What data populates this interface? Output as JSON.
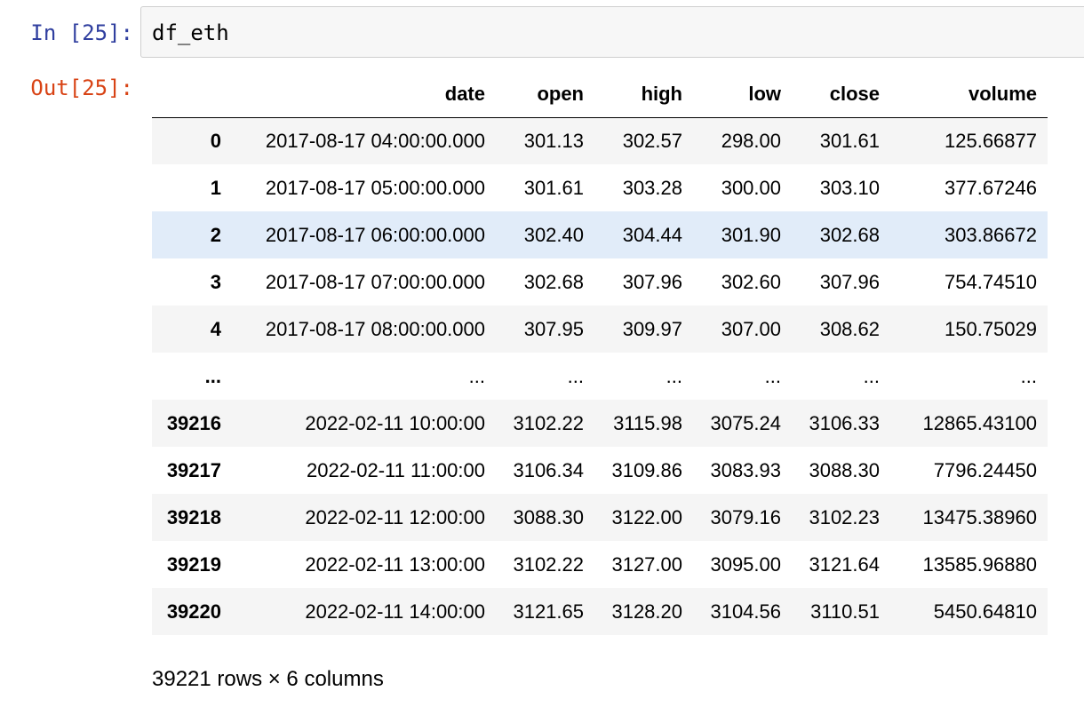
{
  "cell": {
    "in_prompt": "In [25]:",
    "out_prompt": "Out[25]:",
    "code": "df_eth"
  },
  "table": {
    "index_header": "",
    "columns": [
      "date",
      "open",
      "high",
      "low",
      "close",
      "volume"
    ],
    "rows": [
      {
        "index": "0",
        "values": [
          "2017-08-17 04:00:00.000",
          "301.13",
          "302.57",
          "298.00",
          "301.61",
          "125.66877"
        ]
      },
      {
        "index": "1",
        "values": [
          "2017-08-17 05:00:00.000",
          "301.61",
          "303.28",
          "300.00",
          "303.10",
          "377.67246"
        ]
      },
      {
        "index": "2",
        "values": [
          "2017-08-17 06:00:00.000",
          "302.40",
          "304.44",
          "301.90",
          "302.68",
          "303.86672"
        ],
        "highlighted": true
      },
      {
        "index": "3",
        "values": [
          "2017-08-17 07:00:00.000",
          "302.68",
          "307.96",
          "302.60",
          "307.96",
          "754.74510"
        ]
      },
      {
        "index": "4",
        "values": [
          "2017-08-17 08:00:00.000",
          "307.95",
          "309.97",
          "307.00",
          "308.62",
          "150.75029"
        ]
      },
      {
        "index": "...",
        "values": [
          "...",
          "...",
          "...",
          "...",
          "...",
          "..."
        ]
      },
      {
        "index": "39216",
        "values": [
          "2022-02-11 10:00:00",
          "3102.22",
          "3115.98",
          "3075.24",
          "3106.33",
          "12865.43100"
        ]
      },
      {
        "index": "39217",
        "values": [
          "2022-02-11 11:00:00",
          "3106.34",
          "3109.86",
          "3083.93",
          "3088.30",
          "7796.24450"
        ]
      },
      {
        "index": "39218",
        "values": [
          "2022-02-11 12:00:00",
          "3088.30",
          "3122.00",
          "3079.16",
          "3102.23",
          "13475.38960"
        ]
      },
      {
        "index": "39219",
        "values": [
          "2022-02-11 13:00:00",
          "3102.22",
          "3127.00",
          "3095.00",
          "3121.64",
          "13585.96880"
        ]
      },
      {
        "index": "39220",
        "values": [
          "2022-02-11 14:00:00",
          "3121.65",
          "3128.20",
          "3104.56",
          "3110.51",
          "5450.64810"
        ]
      }
    ],
    "shape_text": "39221 rows × 6 columns"
  },
  "colors": {
    "in_prompt": "#303f9f",
    "out_prompt": "#d84315",
    "row_highlight": "#e1ecf9",
    "row_stripe": "#f5f5f5"
  }
}
